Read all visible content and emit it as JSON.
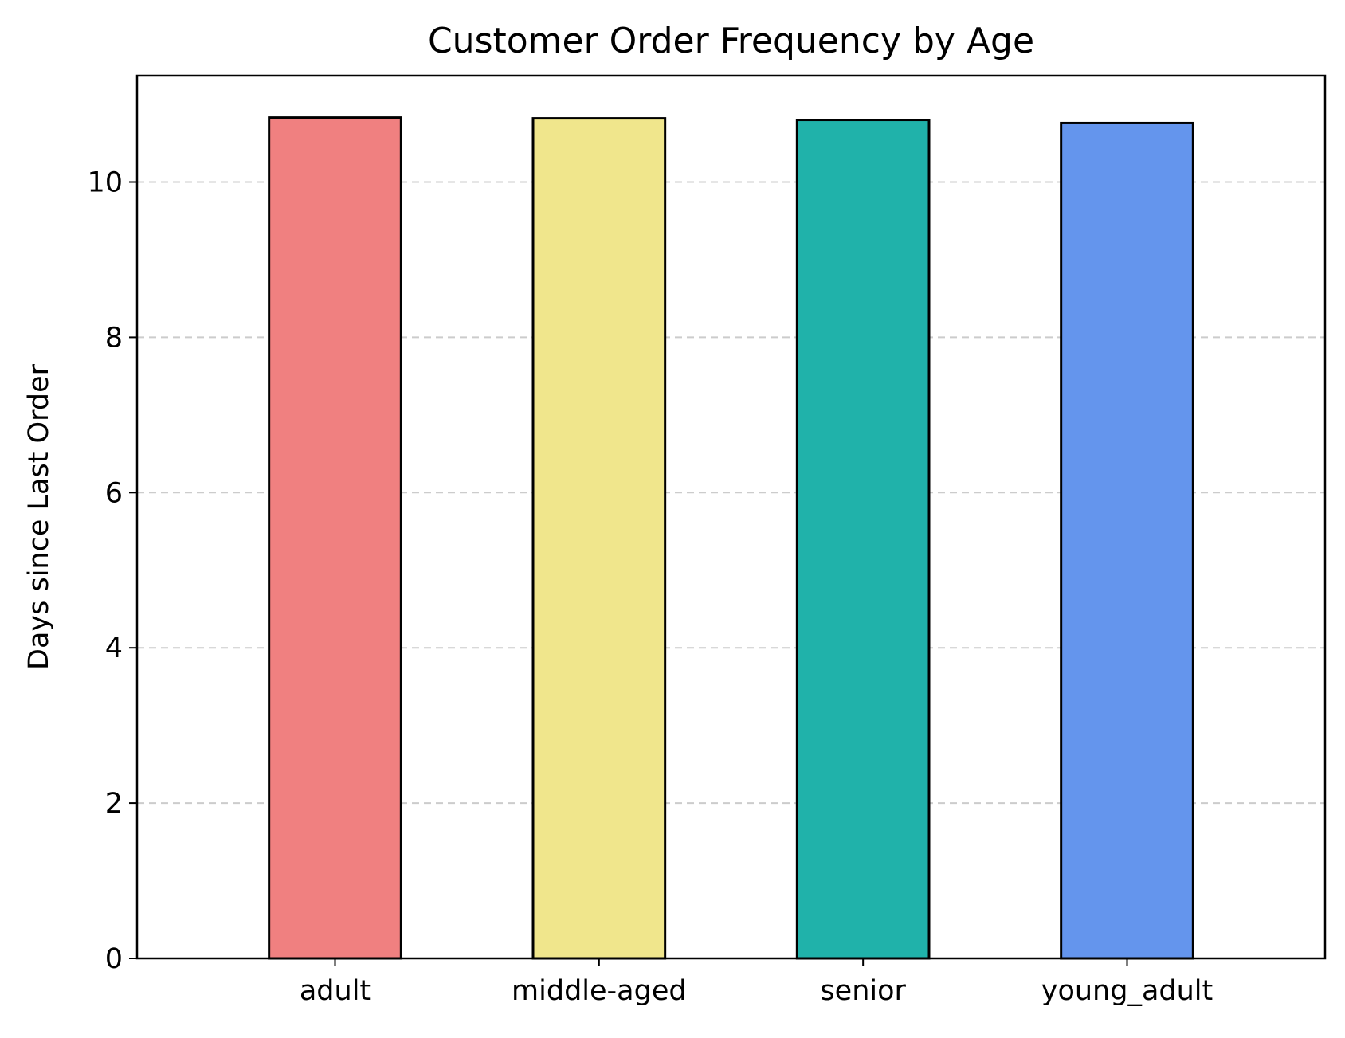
{
  "chart_data": {
    "type": "bar",
    "title": "Customer Order Frequency by Age",
    "xlabel": "",
    "ylabel": "Days since Last Order",
    "categories": [
      "adult",
      "middle-aged",
      "senior",
      "young_adult"
    ],
    "values": [
      10.83,
      10.82,
      10.8,
      10.76
    ],
    "colors": [
      "#f08080",
      "#f0e68c",
      "#20b2aa",
      "#6495ed"
    ],
    "edge_color": "#000000",
    "ylim": [
      0,
      11.37
    ],
    "yticks": [
      0,
      2,
      4,
      6,
      8,
      10
    ],
    "ytick_labels": [
      "0",
      "2",
      "4",
      "6",
      "8",
      "10"
    ],
    "grid": {
      "axis": "y",
      "style": "dashed",
      "color": "#cccccc"
    },
    "legend": "none"
  }
}
